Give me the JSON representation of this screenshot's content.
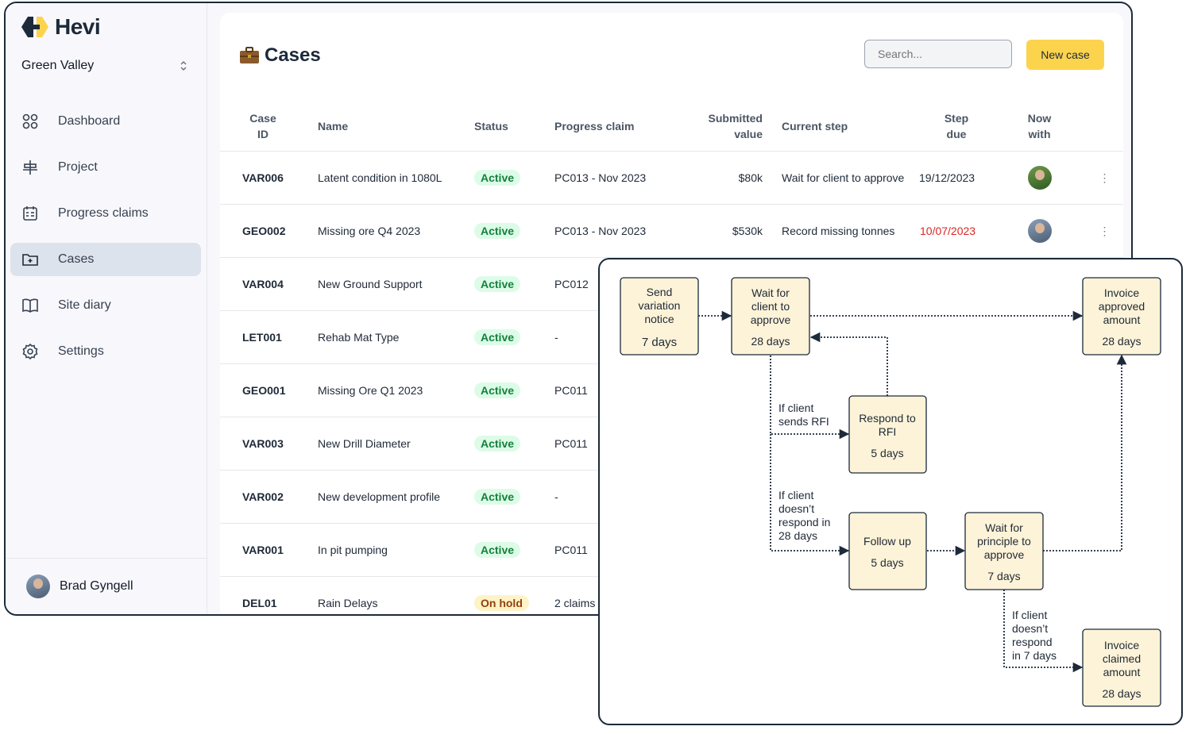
{
  "brand": {
    "name": "Hevi"
  },
  "org": {
    "name": "Green Valley"
  },
  "sidebar": {
    "items": [
      {
        "label": "Dashboard",
        "icon": "dashboard-grid-icon"
      },
      {
        "label": "Project",
        "icon": "project-icon"
      },
      {
        "label": "Progress claims",
        "icon": "calendar-icon"
      },
      {
        "label": "Cases",
        "icon": "folder-plus-icon"
      },
      {
        "label": "Site diary",
        "icon": "book-icon"
      },
      {
        "label": "Settings",
        "icon": "gear-icon"
      }
    ]
  },
  "user": {
    "name": "Brad Gyngell"
  },
  "page": {
    "title": "Cases",
    "title_icon": "briefcase-icon"
  },
  "search": {
    "placeholder": "Search..."
  },
  "toolbar": {
    "new_case_label": "New case"
  },
  "table": {
    "headers": {
      "case_id_1": "Case",
      "case_id_2": "ID",
      "name": "Name",
      "status": "Status",
      "progress_claim": "Progress claim",
      "submitted_1": "Submitted",
      "submitted_2": "value",
      "current_step": "Current step",
      "step_due_1": "Step",
      "step_due_2": "due",
      "now_with_1": "Now",
      "now_with_2": "with"
    },
    "rows": [
      {
        "id": "VAR006",
        "name": "Latent condition in 1080L",
        "status": "Active",
        "claim": "PC013 - Nov 2023",
        "value": "$80k",
        "step": "Wait for client to approve",
        "due": "19/12/2023"
      },
      {
        "id": "GEO002",
        "name": "Missing ore Q4 2023",
        "status": "Active",
        "claim": "PC013 - Nov 2023",
        "value": "$530k",
        "step": "Record missing tonnes",
        "due": "10/07/2023"
      },
      {
        "id": "VAR004",
        "name": "New Ground Support",
        "status": "Active",
        "claim": "PC012"
      },
      {
        "id": "LET001",
        "name": "Rehab Mat Type",
        "status": "Active",
        "claim": "-"
      },
      {
        "id": "GEO001",
        "name": "Missing Ore Q1 2023",
        "status": "Active",
        "claim": "PC011"
      },
      {
        "id": "VAR003",
        "name": "New Drill Diameter",
        "status": "Active",
        "claim": "PC011"
      },
      {
        "id": "VAR002",
        "name": "New development profile",
        "status": "Active",
        "claim": "-"
      },
      {
        "id": "VAR001",
        "name": "In pit pumping",
        "status": "Active",
        "claim": "PC011"
      },
      {
        "id": "DEL01",
        "name": "Rain Delays",
        "status": "On hold",
        "claim": "2 claims"
      }
    ]
  },
  "flow": {
    "send_notice": {
      "l1": "Send",
      "l2": "variation",
      "l3": "notice",
      "days": "7 days"
    },
    "wait_client": {
      "l1": "Wait for",
      "l2": "client to",
      "l3": "approve",
      "days": "28 days"
    },
    "invoice_approved": {
      "l1": "Invoice",
      "l2": "approved",
      "l3": "amount",
      "days": "28 days"
    },
    "respond_rfi": {
      "l1": "Respond to",
      "l2": "RFI",
      "days": "5 days"
    },
    "follow_up": {
      "l1": "Follow up",
      "days": "5 days"
    },
    "wait_principle": {
      "l1": "Wait for",
      "l2": "principle to",
      "l3": "approve",
      "days": "7 days"
    },
    "invoice_claimed": {
      "l1": "Invoice",
      "l2": "claimed",
      "l3": "amount",
      "days": "28 days"
    },
    "label_rfi": {
      "l1": "If client",
      "l2": "sends RFI"
    },
    "label_28": {
      "l1": "If client",
      "l2": "doesn’t",
      "l3": "respond in",
      "l4": "28 days"
    },
    "label_7": {
      "l1": "If client",
      "l2": "doesn’t",
      "l3": "respond",
      "l4": "in 7 days"
    }
  },
  "colors": {
    "accent": "#fcd34d",
    "node_fill": "#fdf3d8",
    "active_green": "#15803d",
    "overdue_red": "#dc2626",
    "navy": "#1c2a3a"
  }
}
